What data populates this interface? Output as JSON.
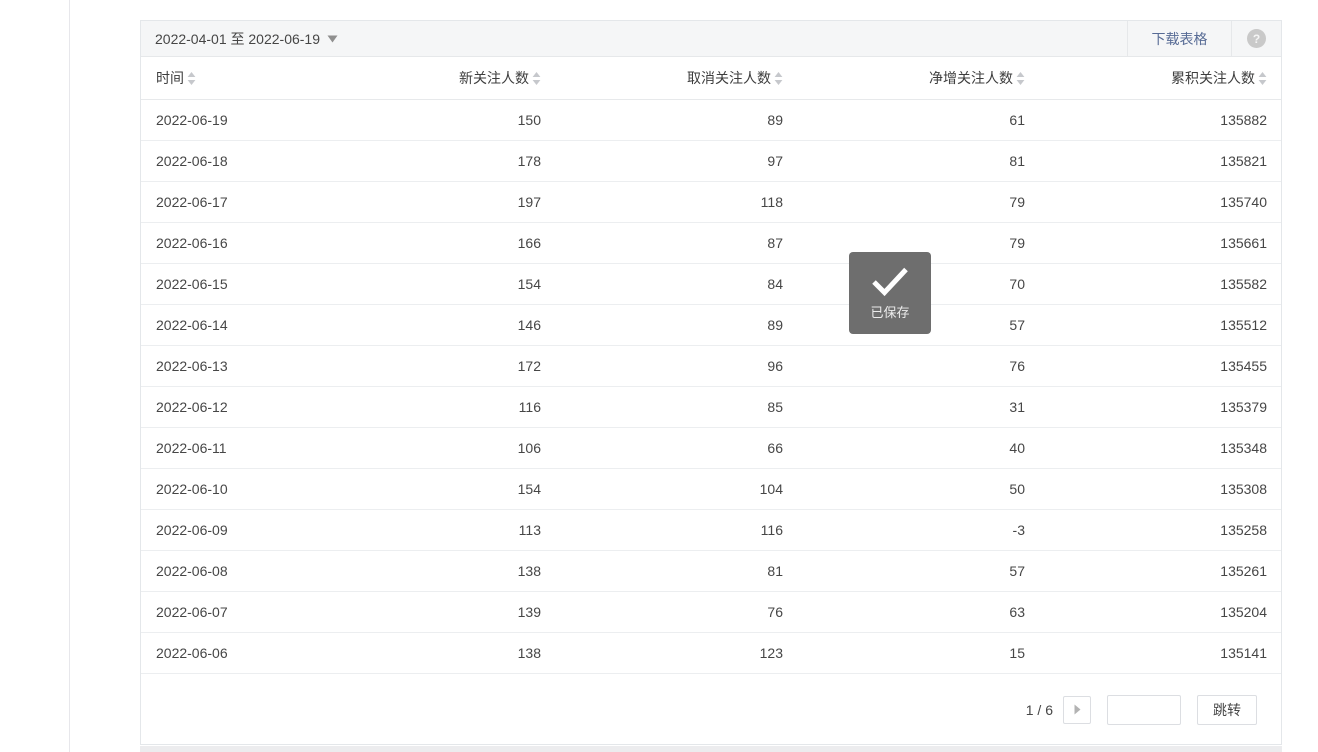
{
  "toolbar": {
    "date_range": "2022-04-01 至 2022-06-19",
    "download_label": "下载表格",
    "help_icon": "question-mark"
  },
  "colors": {
    "accent": "#576b95",
    "toast_background": "#6e6e6e",
    "toolbar_background": "#f5f6f7"
  },
  "table": {
    "columns": [
      {
        "label": "时间",
        "align": "left",
        "sortable": true
      },
      {
        "label": "新关注人数",
        "align": "right",
        "sortable": true
      },
      {
        "label": "取消关注人数",
        "align": "right",
        "sortable": true
      },
      {
        "label": "净增关注人数",
        "align": "right",
        "sortable": true
      },
      {
        "label": "累积关注人数",
        "align": "right",
        "sortable": true
      }
    ],
    "rows": [
      [
        "2022-06-19",
        150,
        89,
        61,
        135882
      ],
      [
        "2022-06-18",
        178,
        97,
        81,
        135821
      ],
      [
        "2022-06-17",
        197,
        118,
        79,
        135740
      ],
      [
        "2022-06-16",
        166,
        87,
        79,
        135661
      ],
      [
        "2022-06-15",
        154,
        84,
        70,
        135582
      ],
      [
        "2022-06-14",
        146,
        89,
        57,
        135512
      ],
      [
        "2022-06-13",
        172,
        96,
        76,
        135455
      ],
      [
        "2022-06-12",
        116,
        85,
        31,
        135379
      ],
      [
        "2022-06-11",
        106,
        66,
        40,
        135348
      ],
      [
        "2022-06-10",
        154,
        104,
        50,
        135308
      ],
      [
        "2022-06-09",
        113,
        116,
        -3,
        135258
      ],
      [
        "2022-06-08",
        138,
        81,
        57,
        135261
      ],
      [
        "2022-06-07",
        139,
        76,
        63,
        135204
      ],
      [
        "2022-06-06",
        138,
        123,
        15,
        135141
      ]
    ],
    "cell_names": [
      "date-cell",
      "new-followers-cell",
      "unfollow-count-cell",
      "net-increase-cell",
      "cumulative-followers-cell"
    ]
  },
  "toast": {
    "message": "已保存",
    "icon": "checkmark"
  },
  "pagination": {
    "current_page_label": "1 / 6",
    "jump_input_value": "",
    "jump_label": "跳转"
  }
}
